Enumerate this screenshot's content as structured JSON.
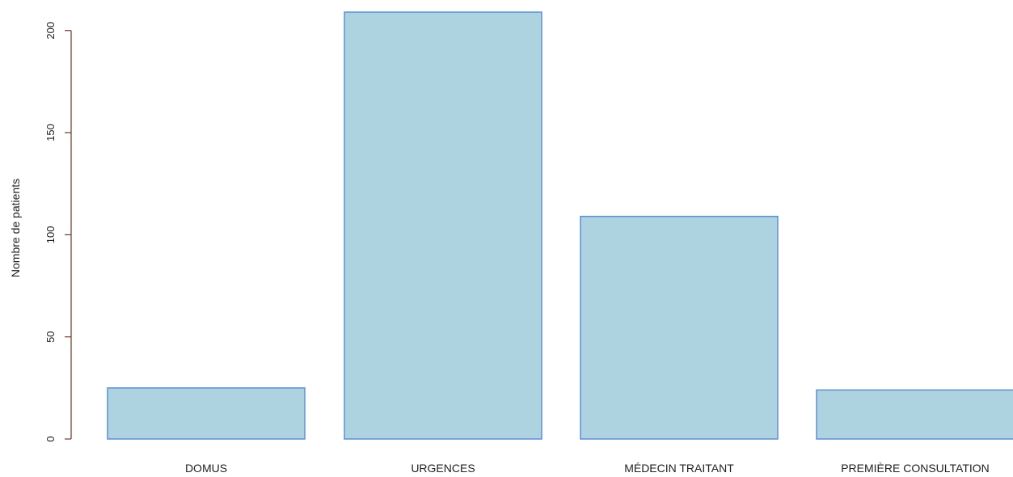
{
  "chart_data": {
    "type": "bar",
    "categories": [
      "DOMUS",
      "URGENCES",
      "MÉDECIN TRAITANT",
      "PREMIÈRE CONSULTATION"
    ],
    "values": [
      25,
      209,
      109,
      24
    ],
    "title": "",
    "xlabel": "",
    "ylabel": "Nombre de patients",
    "ylim": [
      0,
      209
    ],
    "yticks": [
      0,
      50,
      100,
      150,
      200
    ],
    "grid": false,
    "bar_fill": "#add3e1",
    "bar_stroke": "#5b8fd6",
    "axis_color": "#6b3a2a"
  }
}
